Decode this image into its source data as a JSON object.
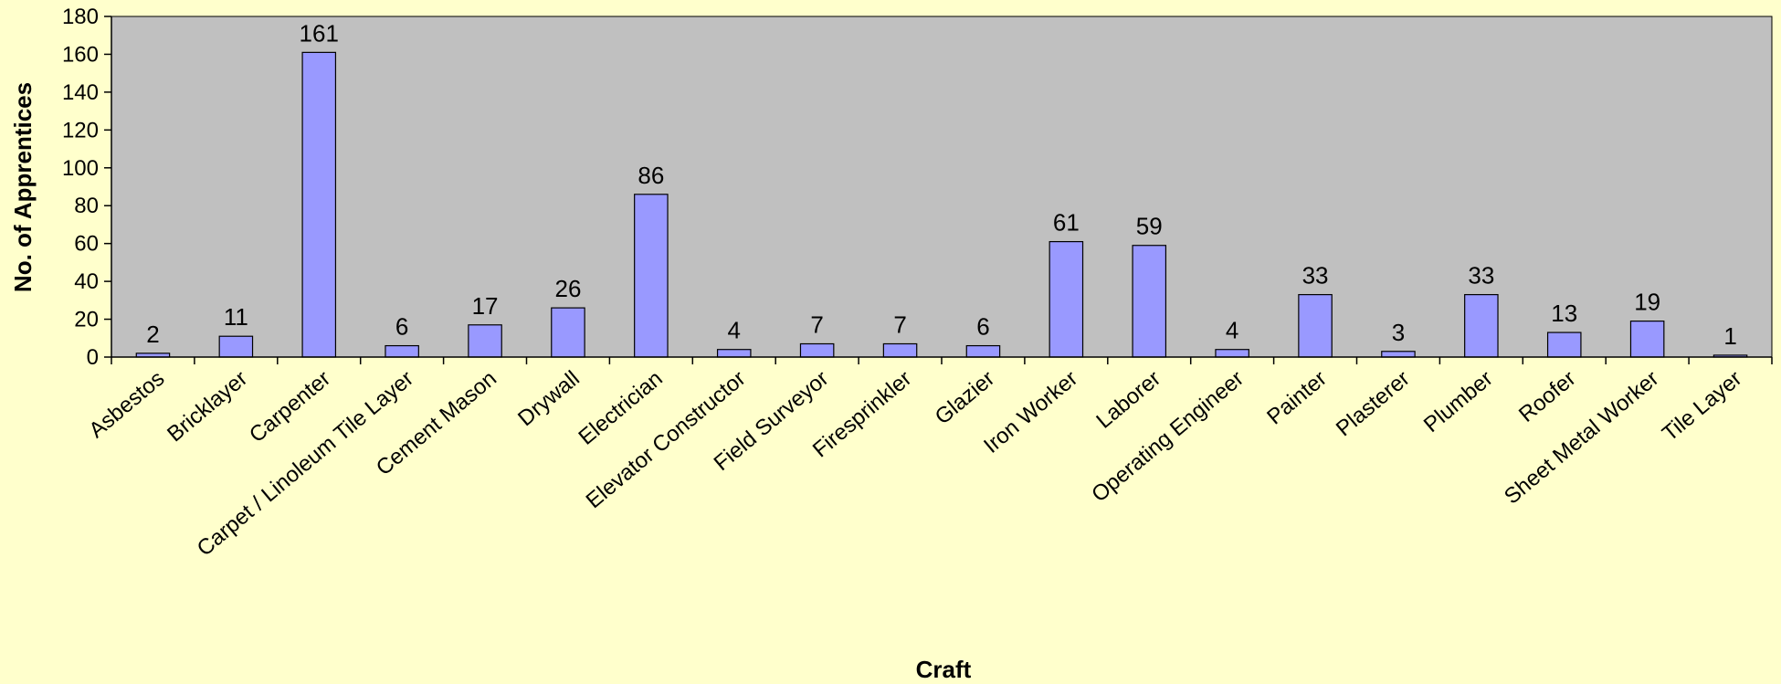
{
  "chart_data": {
    "type": "bar",
    "title": "",
    "xlabel": "Craft",
    "ylabel": "No. of Apprentices",
    "ylim": [
      0,
      180
    ],
    "yticks": [
      0,
      20,
      40,
      60,
      80,
      100,
      120,
      140,
      160,
      180
    ],
    "grid": false,
    "legend": "none",
    "categories": [
      "Asbestos",
      "Bricklayer",
      "Carpenter",
      "Carpet / Linoleum Tile Layer",
      "Cement Mason",
      "Drywall",
      "Electrician",
      "Elevator Constructor",
      "Field Surveyor",
      "Firesprinkler",
      "Glazier",
      "Iron Worker",
      "Laborer",
      "Operating Engineer",
      "Painter",
      "Plasterer",
      "Plumber",
      "Roofer",
      "Sheet Metal Worker",
      "Tile Layer"
    ],
    "values": [
      2,
      11,
      161,
      6,
      17,
      26,
      86,
      4,
      7,
      7,
      6,
      61,
      59,
      4,
      33,
      3,
      33,
      13,
      19,
      1
    ],
    "data_labels": [
      "2",
      "11",
      "161",
      "6",
      "17",
      "26",
      "86",
      "4",
      "7",
      "7",
      "6",
      "61",
      "59",
      "4",
      "33",
      "3",
      "33",
      "13",
      "19",
      "1"
    ],
    "colors": {
      "page_background": "#FFFFCC",
      "plot_background": "#C0C0C0",
      "bar_fill": "#9999FF",
      "bar_stroke": "#000000",
      "axis": "#000000"
    }
  }
}
